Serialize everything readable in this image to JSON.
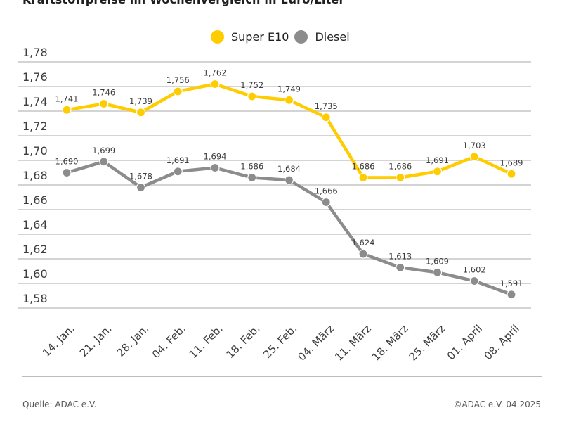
{
  "title": "Kraftstoffpreise im Wochenvergleich in Euro/Liter",
  "legend": {
    "items": [
      {
        "label": "Super E10",
        "color": "#FFCC00"
      },
      {
        "label": "Diesel",
        "color": "#8C8C8C"
      }
    ]
  },
  "footer": {
    "source": "Quelle: ADAC e.V.",
    "copyright": "©ADAC e.V. 04.2025"
  },
  "colors": {
    "grid": "#d4d4d4",
    "tick_label": "#3d3d3d",
    "point_label": "#3d3d3d",
    "marker_halo": "#ffffff"
  },
  "chart_data": {
    "type": "line",
    "title": "Kraftstoffpreise im Wochenvergleich in Euro/Liter",
    "xlabel": "",
    "ylabel": "Euro/Liter",
    "categories": [
      "14. Jan.",
      "21. Jan.",
      "28. Jan.",
      "04. Feb.",
      "11. Feb.",
      "18. Feb.",
      "25. Feb.",
      "04. März",
      "11. März",
      "18. März",
      "25. März",
      "01. April",
      "08. April"
    ],
    "series": [
      {
        "name": "Super E10",
        "color": "#FFCC00",
        "values": [
          1.741,
          1.746,
          1.739,
          1.756,
          1.762,
          1.752,
          1.749,
          1.735,
          1.686,
          1.686,
          1.691,
          1.703,
          1.689
        ]
      },
      {
        "name": "Diesel",
        "color": "#8C8C8C",
        "values": [
          1.69,
          1.699,
          1.678,
          1.691,
          1.694,
          1.686,
          1.684,
          1.666,
          1.624,
          1.613,
          1.609,
          1.602,
          1.591
        ]
      }
    ],
    "ylim": [
      1.58,
      1.78
    ],
    "ytick_step": 0.02,
    "grid": true,
    "legend_position": "top-center",
    "decimal_separator": ",",
    "point_labels": true
  }
}
